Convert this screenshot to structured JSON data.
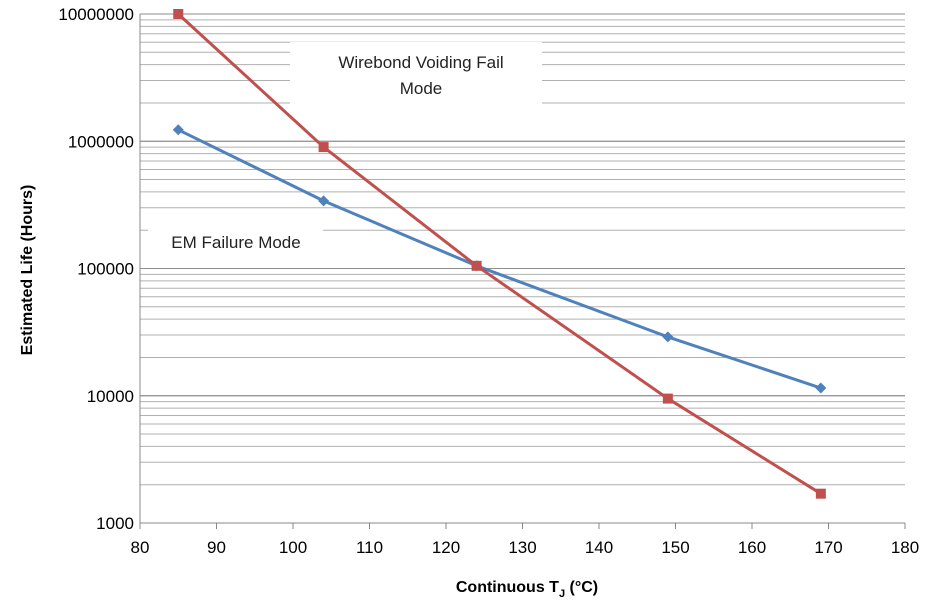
{
  "chart_data": {
    "type": "line",
    "xlabel": "Continuous T",
    "xlabel_subscript": "J",
    "xlabel_unit": " (°C)",
    "ylabel": "Estimated Life (Hours)",
    "xlim": [
      80,
      180
    ],
    "ylim": [
      1000,
      10000000
    ],
    "y_scale": "log",
    "x_ticks": [
      "80",
      "90",
      "100",
      "110",
      "120",
      "130",
      "140",
      "150",
      "160",
      "170",
      "180"
    ],
    "y_ticks": [
      "1000",
      "10000",
      "100000",
      "1000000",
      "10000000"
    ],
    "grid": "horizontal major and minor",
    "series": [
      {
        "color": "#4F81BD",
        "marker": "diamond",
        "x": [
          85,
          104,
          124,
          149,
          169
        ],
        "y": [
          1230000,
          340000,
          105000,
          29000,
          11500
        ]
      },
      {
        "color": "#C0504D",
        "marker": "square",
        "x": [
          85,
          104,
          124,
          149,
          169
        ],
        "y": [
          10000000,
          900000,
          105000,
          9500,
          1700
        ]
      }
    ],
    "annotations": [
      {
        "lines": [
          "Wirebond Voiding Fail",
          "Mode"
        ]
      },
      {
        "lines": [
          "EM Failure Mode"
        ]
      }
    ]
  }
}
